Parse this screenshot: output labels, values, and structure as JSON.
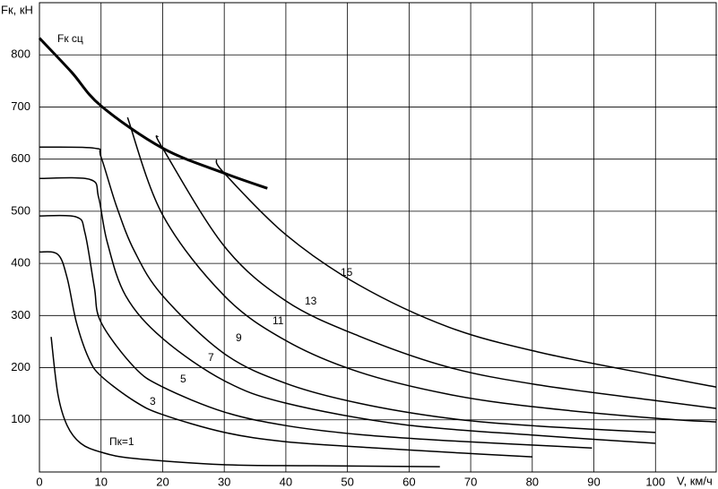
{
  "chart_data": {
    "type": "line",
    "y_label": "Fк, кН",
    "x_label": "V, км/ч",
    "xlim": [
      0,
      110
    ],
    "ylim": [
      0,
      900
    ],
    "xticks": [
      0,
      10,
      20,
      30,
      40,
      50,
      60,
      70,
      80,
      90,
      100
    ],
    "yticks": [
      100,
      200,
      300,
      400,
      500,
      600,
      700,
      800
    ],
    "grid": true,
    "series": [
      {
        "name": "Fк сц",
        "color": "#000000",
        "x": [
          0,
          5.2,
          10,
          20,
          30,
          37
        ],
        "values": [
          832,
          767,
          702,
          621,
          573,
          544
        ]
      },
      {
        "name": "Пк=1",
        "color": "#000000",
        "x": [
          1.9,
          3,
          4.5,
          6.7,
          10,
          15.4,
          30,
          44.5,
          65
        ],
        "values": [
          259,
          149,
          89,
          55,
          38,
          26,
          14,
          12,
          10
        ]
      },
      {
        "name": "3",
        "color": "#000000",
        "x": [
          0,
          3,
          4.5,
          6,
          8,
          10,
          15.4,
          20,
          30,
          40,
          54.7,
          69,
          80
        ],
        "values": [
          422,
          417,
          372,
          287,
          218,
          184,
          136,
          110,
          76,
          58,
          46,
          36,
          29
        ]
      },
      {
        "name": "5",
        "color": "#000000",
        "x": [
          0,
          6,
          7.4,
          8.9,
          10,
          15.4,
          20,
          30,
          40,
          51.8,
          66.4,
          89.7
        ],
        "values": [
          491,
          489,
          458,
          355,
          287,
          201,
          163,
          115,
          89,
          72,
          60,
          46
        ]
      },
      {
        "name": "7",
        "color": "#000000",
        "x": [
          0,
          8.2,
          9.6,
          11,
          14,
          20,
          30,
          40,
          59,
          81,
          100
        ],
        "values": [
          563,
          561,
          527,
          441,
          338,
          256,
          175,
          132,
          91,
          70,
          55
        ]
      },
      {
        "name": "9",
        "color": "#000000",
        "x": [
          0,
          8.9,
          10,
          12.5,
          15.4,
          20,
          30,
          40,
          51.8,
          66.4,
          81,
          100
        ],
        "values": [
          623,
          621,
          604,
          510,
          424,
          338,
          227,
          170,
          132,
          103,
          88,
          76
        ]
      },
      {
        "name": "11",
        "color": "#000000",
        "x": [
          14.3,
          20,
          30,
          40,
          51.8,
          66.4,
          81,
          100,
          109.8
        ],
        "values": [
          680,
          493,
          338,
          252,
          192,
          149,
          124,
          103,
          96
        ]
      },
      {
        "name": "13",
        "color": "#000000",
        "x": [
          19.2,
          20,
          30,
          40,
          51.8,
          66.4,
          81,
          100,
          109.8
        ],
        "values": [
          644,
          621,
          433,
          328,
          261,
          201,
          167,
          137,
          122
        ]
      },
      {
        "name": "15",
        "color": "#000000",
        "x": [
          28.7,
          30,
          40,
          51.8,
          66.4,
          81,
          100,
          109.8
        ],
        "values": [
          599,
          573,
          455,
          359,
          278,
          230,
          185,
          163
        ]
      }
    ]
  }
}
